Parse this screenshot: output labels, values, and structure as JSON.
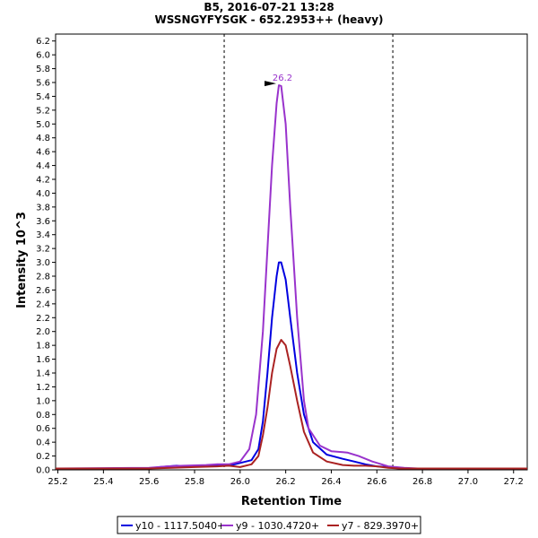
{
  "chart_data": {
    "type": "line",
    "title": "B5, 2016-07-21 13:28",
    "subtitle": "WSSNGYFYSGK - 652.2953++ (heavy)",
    "xlabel": "Retention Time",
    "ylabel": "Intensity 10^3",
    "xlim": [
      25.19,
      27.26
    ],
    "ylim": [
      0,
      6.3
    ],
    "x_ticks": [
      25.2,
      25.4,
      25.6,
      25.8,
      26.0,
      26.2,
      26.4,
      26.6,
      26.8,
      27.0,
      27.2
    ],
    "y_ticks": [
      0.0,
      0.2,
      0.4,
      0.6,
      0.8,
      1.0,
      1.2,
      1.4,
      1.6,
      1.8,
      2.0,
      2.2,
      2.4,
      2.6,
      2.8,
      3.0,
      3.2,
      3.4,
      3.6,
      3.8,
      4.0,
      4.2,
      4.4,
      4.6,
      4.8,
      5.0,
      5.2,
      5.4,
      5.6,
      5.8,
      6.0,
      6.2
    ],
    "grid": false,
    "integration_bounds": [
      25.93,
      26.67
    ],
    "peak_annotation": {
      "x": 26.17,
      "y": 5.56,
      "label": "26.2"
    },
    "legend_position": "bottom",
    "series": [
      {
        "name": "y10 - 1117.5040+",
        "color": "#0000e0",
        "x": [
          25.19,
          25.6,
          25.65,
          25.72,
          25.8,
          25.9,
          25.95,
          26.0,
          26.05,
          26.08,
          26.1,
          26.12,
          26.14,
          26.16,
          26.17,
          26.18,
          26.2,
          26.22,
          26.25,
          26.28,
          26.32,
          26.38,
          26.45,
          26.5,
          26.55,
          26.6,
          26.65,
          26.7,
          26.75,
          27.26
        ],
        "y": [
          0.02,
          0.02,
          0.04,
          0.06,
          0.05,
          0.07,
          0.06,
          0.1,
          0.14,
          0.3,
          0.7,
          1.4,
          2.2,
          2.8,
          3.0,
          3.0,
          2.75,
          2.2,
          1.4,
          0.8,
          0.4,
          0.22,
          0.16,
          0.12,
          0.08,
          0.05,
          0.04,
          0.02,
          0.02,
          0.02
        ]
      },
      {
        "name": "y9 - 1030.4720+",
        "color": "#9933cc",
        "x": [
          25.19,
          25.6,
          25.68,
          25.75,
          25.85,
          25.9,
          25.95,
          26.0,
          26.04,
          26.07,
          26.1,
          26.12,
          26.14,
          26.16,
          26.17,
          26.18,
          26.2,
          26.22,
          26.25,
          26.28,
          26.3,
          26.35,
          26.4,
          26.47,
          26.52,
          26.58,
          26.65,
          26.72,
          26.78,
          27.26
        ],
        "y": [
          0.02,
          0.03,
          0.05,
          0.06,
          0.07,
          0.08,
          0.08,
          0.12,
          0.3,
          0.8,
          2.0,
          3.2,
          4.4,
          5.3,
          5.56,
          5.55,
          5.0,
          3.8,
          2.2,
          1.0,
          0.6,
          0.35,
          0.27,
          0.25,
          0.2,
          0.12,
          0.05,
          0.03,
          0.02,
          0.02
        ]
      },
      {
        "name": "y7 - 829.3970+",
        "color": "#aa2222",
        "x": [
          25.19,
          25.6,
          25.7,
          25.8,
          25.9,
          25.95,
          26.0,
          26.05,
          26.08,
          26.1,
          26.12,
          26.14,
          26.16,
          26.18,
          26.2,
          26.22,
          26.25,
          26.28,
          26.32,
          26.38,
          26.45,
          26.5,
          26.55,
          26.6,
          26.65,
          26.7,
          27.26
        ],
        "y": [
          0.02,
          0.02,
          0.03,
          0.04,
          0.05,
          0.06,
          0.04,
          0.08,
          0.2,
          0.5,
          0.9,
          1.4,
          1.75,
          1.88,
          1.8,
          1.5,
          1.0,
          0.55,
          0.25,
          0.12,
          0.07,
          0.06,
          0.06,
          0.05,
          0.03,
          0.02,
          0.02
        ]
      }
    ]
  }
}
